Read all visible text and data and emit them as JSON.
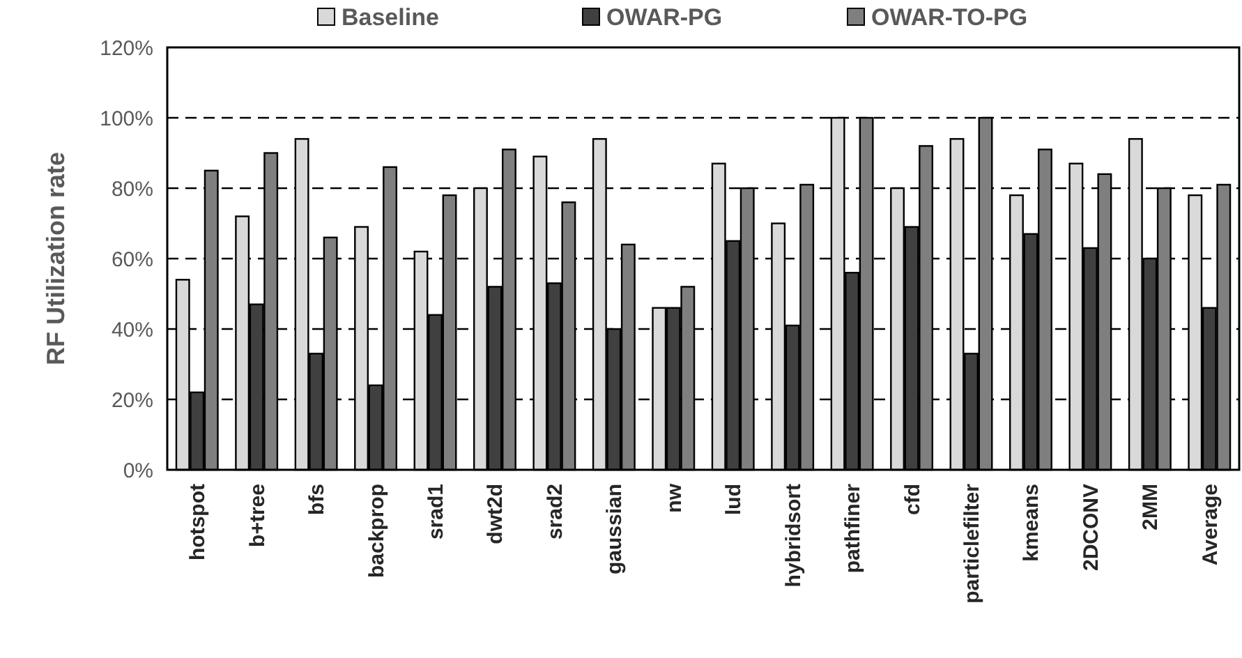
{
  "chart_data": {
    "type": "bar",
    "ylabel": "RF Utilization rate",
    "categories": [
      "hotspot",
      "b+tree",
      "bfs",
      "backprop",
      "srad1",
      "dwt2d",
      "srad2",
      "gaussian",
      "nw",
      "lud",
      "hybridsort",
      "pathfiner",
      "cfd",
      "particlefilter",
      "kmeans",
      "2DCONV",
      "2MM",
      "Average"
    ],
    "series": [
      {
        "name": "Baseline",
        "color": "#d9d9d9",
        "values": [
          54,
          72,
          94,
          69,
          62,
          80,
          89,
          94,
          46,
          87,
          70,
          100,
          80,
          94,
          78,
          87,
          94,
          78
        ]
      },
      {
        "name": "OWAR-PG",
        "color": "#404040",
        "values": [
          22,
          47,
          33,
          24,
          44,
          52,
          53,
          40,
          46,
          65,
          41,
          56,
          69,
          33,
          67,
          63,
          60,
          46
        ]
      },
      {
        "name": "OWAR-TO-PG",
        "color": "#7f7f7f",
        "values": [
          85,
          90,
          66,
          86,
          78,
          91,
          76,
          64,
          52,
          80,
          81,
          100,
          92,
          100,
          91,
          84,
          80,
          81
        ]
      }
    ],
    "ylim": [
      0,
      120
    ],
    "yticks": [
      {
        "value": 0,
        "label": "0%"
      },
      {
        "value": 20,
        "label": "20%"
      },
      {
        "value": 40,
        "label": "40%"
      },
      {
        "value": 60,
        "label": "60%"
      },
      {
        "value": 80,
        "label": "80%"
      },
      {
        "value": 100,
        "label": "100%"
      },
      {
        "value": 120,
        "label": "120%"
      }
    ],
    "grid": "y",
    "legend": "top"
  }
}
